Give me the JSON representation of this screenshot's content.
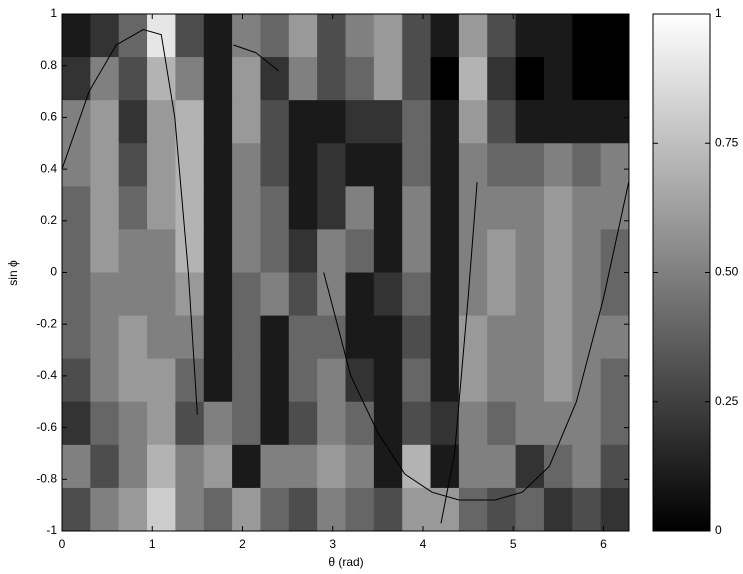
{
  "chart_data": {
    "type": "heatmap",
    "colormap": "gray",
    "xlabel": "θ (rad)",
    "ylabel": "sin ϕ",
    "xlim": [
      0,
      6.283
    ],
    "ylim": [
      -1,
      1
    ],
    "xticks": [
      0,
      1,
      2,
      3,
      4,
      5,
      6
    ],
    "yticks": [
      -1,
      -0.8,
      -0.6,
      -0.4,
      -0.2,
      0,
      0.2,
      0.4,
      0.6,
      0.8,
      1
    ],
    "clim": [
      0,
      1
    ],
    "cticks": [
      0,
      0.25,
      {
        "value": 0.5,
        "label": "0.50"
      },
      0.75,
      1
    ],
    "z": [
      [
        0.1,
        0.2,
        0.4,
        0.9,
        0.3,
        0.1,
        0.5,
        0.4,
        0.6,
        0.3,
        0.5,
        0.6,
        0.3,
        0.1,
        0.6,
        0.3,
        0.1,
        0.1,
        0,
        0
      ],
      [
        0.2,
        0.5,
        0.3,
        0.7,
        0.5,
        0.1,
        0.6,
        0.2,
        0.5,
        0.3,
        0.4,
        0.6,
        0.3,
        0,
        0.7,
        0.2,
        0,
        0.1,
        0,
        0
      ],
      [
        0.5,
        0.6,
        0.2,
        0.6,
        0.7,
        0.1,
        0.6,
        0.3,
        0.1,
        0.1,
        0.2,
        0.2,
        0.4,
        0.1,
        0.6,
        0.3,
        0.1,
        0.1,
        0.1,
        0.1
      ],
      [
        0.5,
        0.6,
        0.3,
        0.6,
        0.7,
        0.1,
        0.5,
        0.3,
        0.1,
        0.2,
        0.1,
        0.1,
        0.4,
        0.1,
        0.5,
        0.4,
        0.4,
        0.5,
        0.4,
        0.5
      ],
      [
        0.4,
        0.6,
        0.4,
        0.6,
        0.7,
        0.1,
        0.5,
        0.4,
        0.1,
        0.2,
        0.5,
        0.1,
        0.5,
        0.1,
        0.5,
        0.5,
        0.5,
        0.6,
        0.5,
        0.5
      ],
      [
        0.4,
        0.6,
        0.5,
        0.5,
        0.7,
        0.1,
        0.5,
        0.4,
        0.2,
        0.5,
        0.4,
        0.1,
        0.5,
        0.1,
        0.5,
        0.6,
        0.5,
        0.6,
        0.5,
        0.4
      ],
      [
        0.4,
        0.5,
        0.5,
        0.5,
        0.6,
        0.1,
        0.4,
        0.5,
        0.3,
        0.5,
        0.1,
        0.2,
        0.4,
        0.1,
        0.5,
        0.6,
        0.5,
        0.6,
        0.5,
        0.4
      ],
      [
        0.4,
        0.5,
        0.6,
        0.5,
        0.5,
        0.1,
        0.4,
        0.1,
        0.4,
        0.4,
        0.1,
        0.1,
        0.3,
        0.1,
        0.6,
        0.5,
        0.5,
        0.6,
        0.5,
        0.5
      ],
      [
        0.3,
        0.5,
        0.6,
        0.6,
        0.4,
        0.1,
        0.4,
        0.1,
        0.4,
        0.5,
        0.2,
        0.1,
        0.4,
        0.1,
        0.6,
        0.5,
        0.5,
        0.6,
        0.5,
        0.4
      ],
      [
        0.2,
        0.4,
        0.5,
        0.6,
        0.3,
        0.5,
        0.4,
        0.1,
        0.3,
        0.5,
        0.4,
        0.1,
        0.3,
        0.2,
        0.5,
        0.4,
        0.5,
        0.5,
        0.5,
        0.4
      ],
      [
        0.5,
        0.3,
        0.5,
        0.7,
        0.5,
        0.6,
        0.1,
        0.5,
        0.5,
        0.6,
        0.5,
        0.1,
        0.7,
        0.1,
        0.5,
        0.5,
        0.2,
        0.4,
        0.5,
        0.3
      ],
      [
        0.3,
        0.5,
        0.6,
        0.8,
        0.5,
        0.4,
        0.6,
        0.4,
        0.3,
        0.5,
        0.4,
        0.3,
        0.6,
        0.6,
        0.4,
        0.3,
        0.4,
        0.2,
        0.3,
        0.2
      ]
    ],
    "line_color": "#000000",
    "lines": [
      {
        "x": [
          0,
          0.3,
          0.6,
          0.9,
          1.1,
          1.25,
          1.4,
          1.5
        ],
        "y": [
          0.4,
          0.7,
          0.88,
          0.94,
          0.92,
          0.6,
          0,
          -0.55
        ]
      },
      {
        "x": [
          1.9,
          2.15,
          2.4
        ],
        "y": [
          0.88,
          0.85,
          0.78
        ]
      },
      {
        "x": [
          2.9,
          3.2,
          3.5,
          3.8,
          4.1,
          4.4,
          4.8,
          5.1,
          5.4,
          5.7,
          6.0,
          6.28
        ],
        "y": [
          0,
          -0.4,
          -0.62,
          -0.78,
          -0.85,
          -0.88,
          -0.88,
          -0.85,
          -0.75,
          -0.5,
          -0.1,
          0.35
        ]
      },
      {
        "x": [
          4.2,
          4.35,
          4.5,
          4.6
        ],
        "y": [
          -0.97,
          -0.7,
          -0.1,
          0.35
        ]
      }
    ]
  }
}
